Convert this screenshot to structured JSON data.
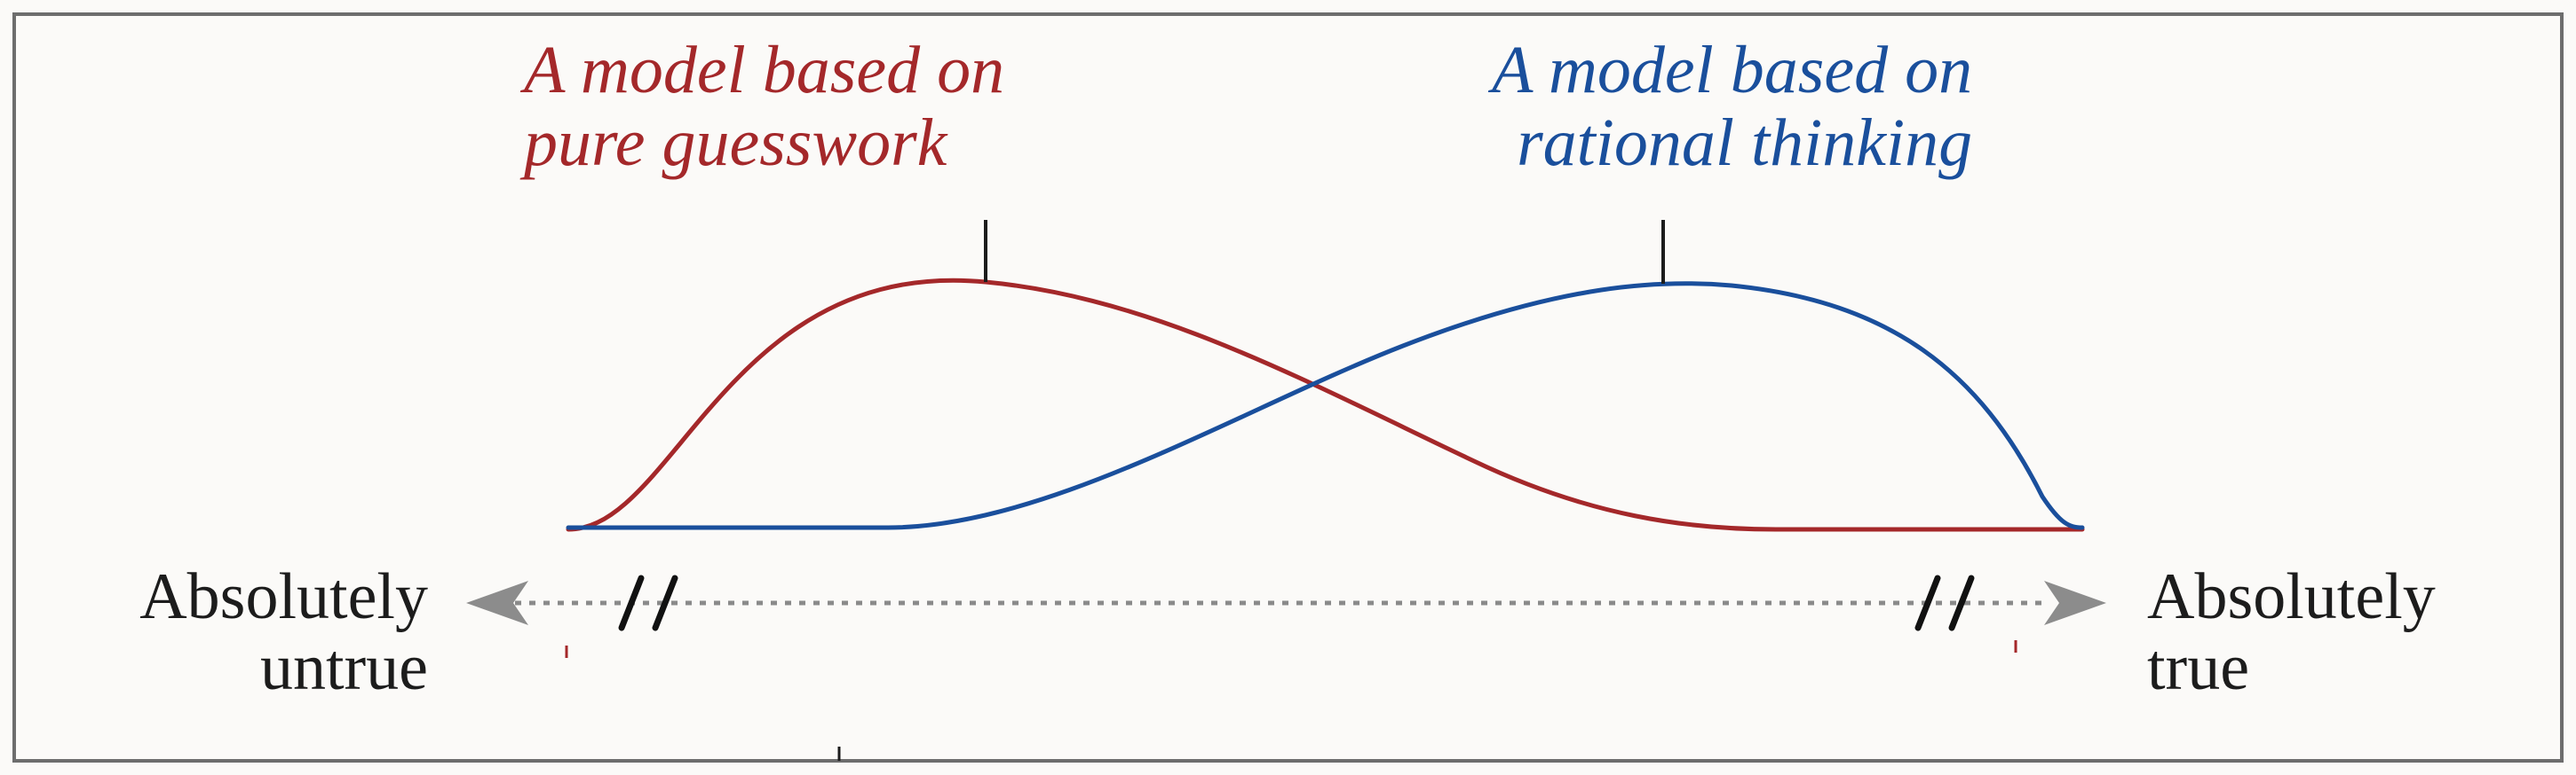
{
  "diagram": {
    "models": [
      {
        "id": "guesswork",
        "line1": "A model based on",
        "line2": "pure guesswork",
        "color": "#a4282a"
      },
      {
        "id": "rational",
        "line1": "A model based on",
        "line2": "rational thinking",
        "color": "#1a4f9c"
      }
    ],
    "axis": {
      "left_line1": "Absolutely",
      "left_line2": "untrue",
      "right_line1": "Absolutely",
      "right_line2": "true"
    },
    "colors": {
      "frame": "#6d6d6d",
      "axis_dots": "#8a8a8a",
      "arrow": "#8c8c8c",
      "break_marks": "#111111",
      "text": "#1c1c1c"
    }
  }
}
